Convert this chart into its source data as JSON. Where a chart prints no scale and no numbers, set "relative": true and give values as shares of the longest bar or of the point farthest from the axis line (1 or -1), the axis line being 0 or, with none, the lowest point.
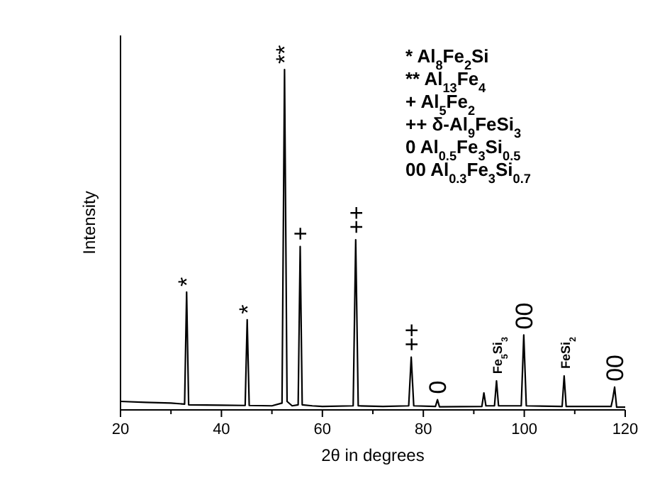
{
  "chart_data": {
    "type": "line",
    "relative": true,
    "xlabel": "2θ in degrees",
    "ylabel": "Intensity",
    "color": "#000000",
    "x": [
      20,
      25,
      30,
      32.7,
      33.1,
      33.5,
      40,
      44.7,
      45.1,
      45.5,
      50,
      52.0,
      52.5,
      53.0,
      54,
      55.2,
      55.6,
      56.0,
      58,
      60,
      66.1,
      66.6,
      67.1,
      72,
      77.1,
      77.6,
      78.1,
      82.4,
      82.8,
      83.2,
      91.6,
      92.0,
      92.4,
      94.1,
      94.5,
      94.9,
      99.4,
      99.9,
      100.4,
      107.5,
      107.9,
      108.3,
      117.2,
      117.5,
      117.9,
      118.3,
      120
    ],
    "values": [
      0.025,
      0.022,
      0.02,
      0.017,
      0.346,
      0.015,
      0.014,
      0.013,
      0.265,
      0.013,
      0.012,
      0.02,
      1,
      0.025,
      0.012,
      0.015,
      0.48,
      0.015,
      0.012,
      0.01,
      0.012,
      0.5,
      0.012,
      0.01,
      0.012,
      0.155,
      0.012,
      0.01,
      0.03,
      0.009,
      0.01,
      0.05,
      0.012,
      0.012,
      0.085,
      0.012,
      0.012,
      0.22,
      0.012,
      0.01,
      0.1,
      0.01,
      0.01,
      0.03,
      0.067,
      0.008,
      0.008
    ],
    "xlim": [
      20,
      120
    ],
    "xticks": [
      20,
      {
        "value": 30,
        "label": null
      },
      40,
      {
        "value": 50,
        "label": null
      },
      60,
      {
        "value": 70,
        "label": null
      },
      80,
      {
        "value": 90,
        "label": null
      },
      100,
      {
        "value": 110,
        "label": null
      },
      120
    ],
    "annotations": [
      {
        "text": "*",
        "x": 33.1,
        "y": 0.346
      },
      {
        "text": "*",
        "x": 45.1,
        "y": 0.265
      },
      {
        "text": "**",
        "x": 52.5,
        "y": 1
      },
      {
        "text": "+",
        "x": 55.6,
        "y": 0.48
      },
      {
        "text": "++",
        "x": 66.6,
        "y": 0.5
      },
      {
        "text": "++",
        "x": 77.6,
        "y": 0.155
      },
      {
        "text": "0",
        "x": 82.8,
        "y": 0.03
      },
      {
        "text": "Fe$_{5}$Si$_{3}$",
        "x": 94.5,
        "y": 0.085
      },
      {
        "text": "00",
        "x": 99.9,
        "y": 0.22
      },
      {
        "text": "FeSi$_{2}$",
        "x": 107.9,
        "y": 0.1
      },
      {
        "text": "00",
        "x": 117.9,
        "y": 0.067
      },
      "* Al$_{8}$Fe$_{2}$Si",
      "** Al$_{13}$Fe$_{4}$",
      "+ Al$_{5}$Fe$_{2}$",
      "++ δ-Al$_{9}$FeSi$_{3}$",
      "0 Al$_{0.5}$Fe$_{3}$Si$_{0.5}$",
      "00 Al$_{0.3}$Fe$_{3}$Si$_{0.7}$"
    ]
  }
}
